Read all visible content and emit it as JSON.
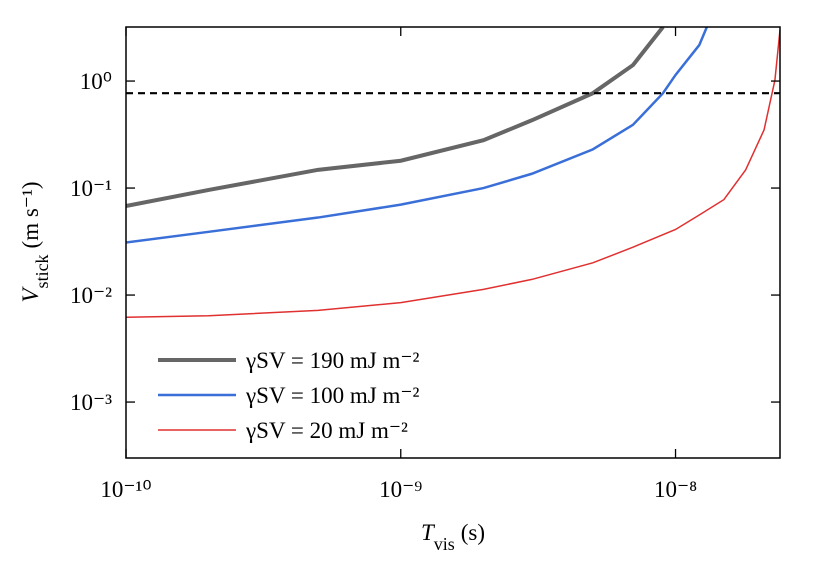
{
  "chart_data": {
    "type": "line",
    "x_label": {
      "symbol": "T",
      "subscript": "vis",
      "unit": "(s)"
    },
    "y_label": {
      "symbol": "V",
      "subscript": "stick",
      "unit": "(m s⁻¹)"
    },
    "log_x": true,
    "log_y": true,
    "xlim": [
      1e-10,
      2.4e-08
    ],
    "ylim": [
      0.0003,
      3.2
    ],
    "xticks": [
      {
        "value": 1e-10,
        "label": "10⁻¹⁰"
      },
      {
        "value": 1e-09,
        "label": "10⁻⁹"
      },
      {
        "value": 1e-08,
        "label": "10⁻⁸"
      }
    ],
    "yticks": [
      {
        "value": 0.001,
        "label": "10⁻³"
      },
      {
        "value": 0.01,
        "label": "10⁻²"
      },
      {
        "value": 0.1,
        "label": "10⁻¹"
      },
      {
        "value": 1,
        "label": "10⁰"
      }
    ],
    "hline": {
      "y": 0.77,
      "color": "#000000"
    },
    "legend": "lower left",
    "series": [
      {
        "name": "γSV = 190 mJ m⁻²",
        "color": "#666666",
        "x": [
          1e-10,
          2e-10,
          5e-10,
          1e-09,
          2e-09,
          3e-09,
          5e-09,
          7e-09,
          9e-09
        ],
        "values": [
          0.068,
          0.096,
          0.148,
          0.18,
          0.28,
          0.43,
          0.77,
          1.41,
          3.2
        ]
      },
      {
        "name": "γSV = 100 mJ m⁻²",
        "color": "#3a6fd8",
        "x": [
          1e-10,
          2e-10,
          5e-10,
          1e-09,
          2e-09,
          3e-09,
          5e-09,
          7e-09,
          9e-09,
          1e-08,
          1.22e-08,
          1.3e-08
        ],
        "values": [
          0.031,
          0.039,
          0.053,
          0.07,
          0.1,
          0.136,
          0.23,
          0.39,
          0.77,
          1.14,
          2.17,
          3.2
        ]
      },
      {
        "name": "γSV = 20 mJ m⁻²",
        "color": "#e03030",
        "x": [
          1e-10,
          2e-10,
          5e-10,
          1e-09,
          2e-09,
          3e-09,
          5e-09,
          7e-09,
          1e-08,
          1.22e-08,
          1.5e-08,
          1.8e-08,
          2.1e-08,
          2.3e-08,
          2.4e-08
        ],
        "values": [
          0.0062,
          0.0064,
          0.0072,
          0.0085,
          0.0113,
          0.014,
          0.02,
          0.028,
          0.041,
          0.056,
          0.078,
          0.148,
          0.35,
          1.02,
          3.0
        ]
      }
    ]
  }
}
